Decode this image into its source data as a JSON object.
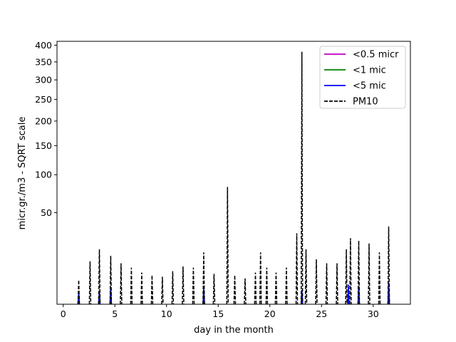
{
  "chart_data": {
    "type": "line",
    "xlabel": "day in the month",
    "ylabel": "micr.gr./m3 - SQRT scale",
    "xlim": [
      -0.6,
      33.6
    ],
    "ylim": [
      0,
      412
    ],
    "y_scale": "sqrt",
    "xticks": [
      0,
      5,
      10,
      15,
      20,
      25,
      30
    ],
    "yticks": [
      50,
      100,
      150,
      200,
      250,
      300,
      350,
      400
    ],
    "legend_position": "top-right",
    "grid": false,
    "series": [
      {
        "name": "<0.5 micr",
        "color": "#bf00bf",
        "style": "solid",
        "x": [
          1.5,
          3.5,
          4.6,
          13.6,
          23.1,
          27.6,
          28.6,
          31.5
        ],
        "y": [
          0.3,
          0.4,
          0.8,
          0.6,
          0.5,
          0.9,
          0.7,
          1.0
        ]
      },
      {
        "name": "<1 mic",
        "color": "#008000",
        "style": "solid",
        "x": [
          1.5,
          3.5,
          4.6,
          13.6,
          23.1,
          27.6,
          28.6,
          31.5
        ],
        "y": [
          0.4,
          0.5,
          1.0,
          0.8,
          0.7,
          1.2,
          1.0,
          1.4
        ]
      },
      {
        "name": "<5 mic",
        "color": "#0000ff",
        "style": "solid",
        "x": [
          1.5,
          3.5,
          4.6,
          13.6,
          23.1,
          27.6,
          28.6,
          31.5
        ],
        "y": [
          0.8,
          1.0,
          1.8,
          1.5,
          1.2,
          2.3,
          2.0,
          2.8
        ]
      },
      {
        "name": "PM10",
        "color": "#000000",
        "style": "dashed",
        "x": [
          1.5,
          2.6,
          3.5,
          4.6,
          5.6,
          6.6,
          7.6,
          8.6,
          9.6,
          10.6,
          11.6,
          12.6,
          13.6,
          14.6,
          15.9,
          16.6,
          17.6,
          18.6,
          19.1,
          19.7,
          20.6,
          21.6,
          22.6,
          23.1,
          23.5,
          24.5,
          25.5,
          26.5,
          27.4,
          27.8,
          28.6,
          29.6,
          30.6,
          31.5
        ],
        "y": [
          3.5,
          11,
          18,
          14,
          10,
          8,
          6,
          5,
          4.5,
          6.5,
          8.5,
          8,
          16,
          5.5,
          82,
          5,
          4,
          6,
          16,
          8,
          6,
          8,
          30,
          380,
          18,
          12,
          10,
          10,
          18,
          26,
          24,
          22,
          16,
          36
        ]
      }
    ]
  }
}
